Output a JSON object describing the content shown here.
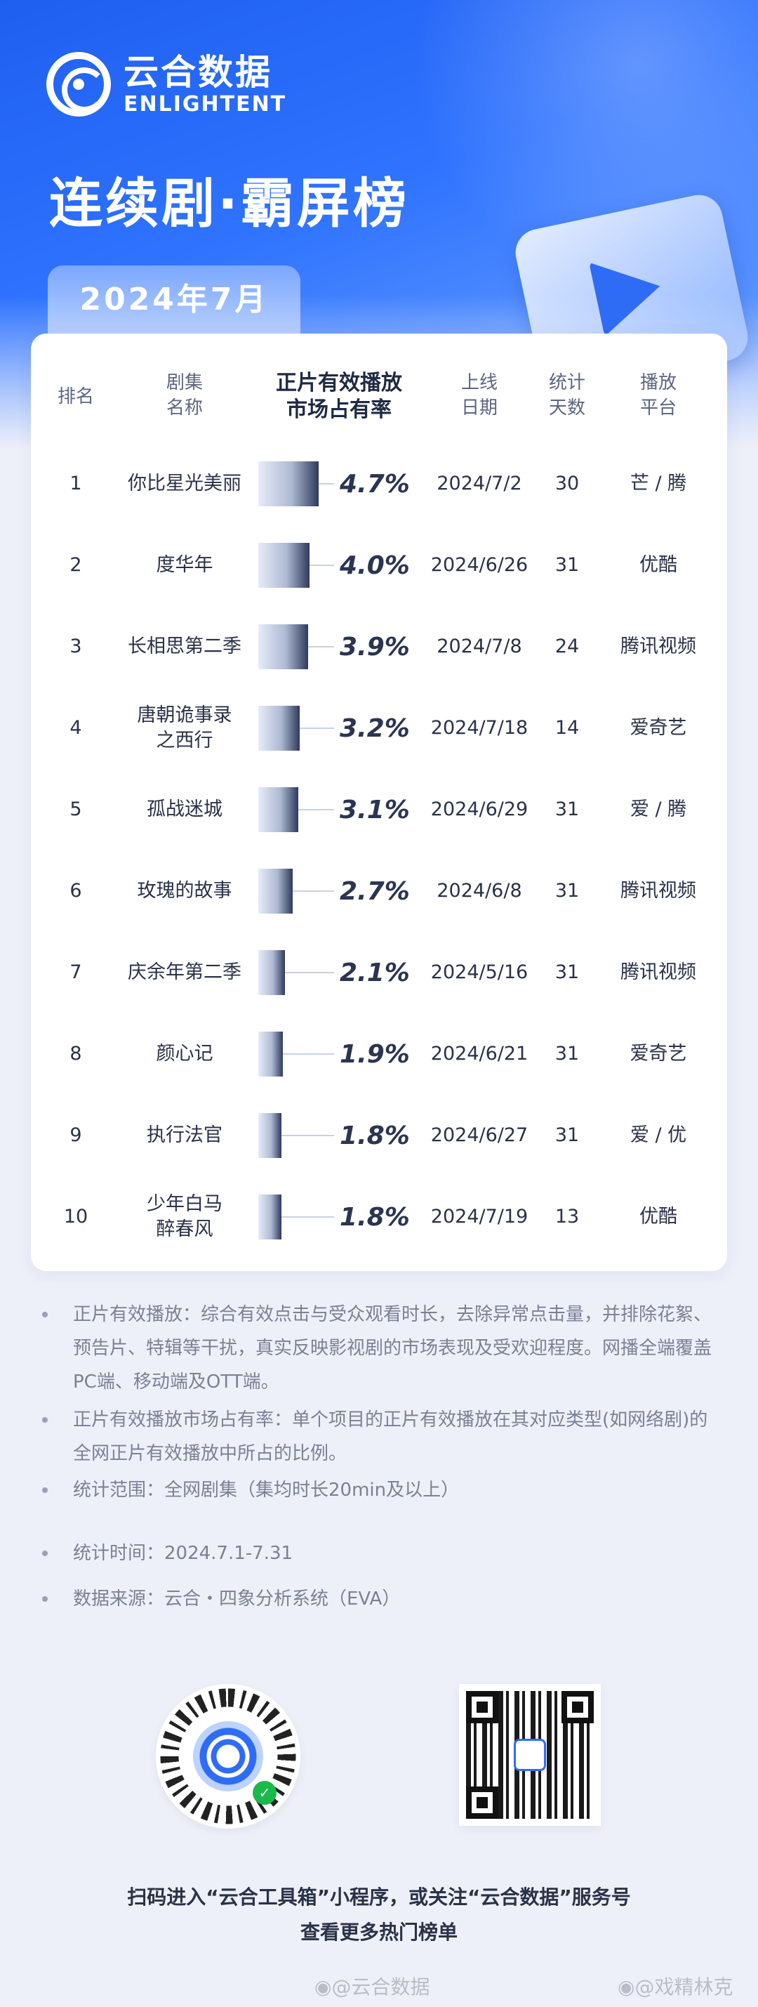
{
  "brand": {
    "name_cn": "云合数据",
    "name_en": "ENLIGHTENT"
  },
  "title": "连续剧·霸屏榜",
  "period": "2024年7月",
  "table": {
    "headers": {
      "rank": "排名",
      "name": "剧集\n名称",
      "share": "正片有效播放\n市场占有率",
      "date": "上线\n日期",
      "days": "统计\n天数",
      "platform": "播放\n平台"
    },
    "rows": [
      {
        "rank": "1",
        "name": "你比星光美丽",
        "share": "4.7%",
        "share_value": 4.7,
        "date": "2024/7/2",
        "days": "30",
        "platform": "芒 / 腾"
      },
      {
        "rank": "2",
        "name": "度华年",
        "share": "4.0%",
        "share_value": 4.0,
        "date": "2024/6/26",
        "days": "31",
        "platform": "优酷"
      },
      {
        "rank": "3",
        "name": "长相思第二季",
        "share": "3.9%",
        "share_value": 3.9,
        "date": "2024/7/8",
        "days": "24",
        "platform": "腾讯视频"
      },
      {
        "rank": "4",
        "name": "唐朝诡事录\n之西行",
        "share": "3.2%",
        "share_value": 3.2,
        "date": "2024/7/18",
        "days": "14",
        "platform": "爱奇艺"
      },
      {
        "rank": "5",
        "name": "孤战迷城",
        "share": "3.1%",
        "share_value": 3.1,
        "date": "2024/6/29",
        "days": "31",
        "platform": "爱 / 腾"
      },
      {
        "rank": "6",
        "name": "玫瑰的故事",
        "share": "2.7%",
        "share_value": 2.7,
        "date": "2024/6/8",
        "days": "31",
        "platform": "腾讯视频"
      },
      {
        "rank": "7",
        "name": "庆余年第二季",
        "share": "2.1%",
        "share_value": 2.1,
        "date": "2024/5/16",
        "days": "31",
        "platform": "腾讯视频"
      },
      {
        "rank": "8",
        "name": "颜心记",
        "share": "1.9%",
        "share_value": 1.9,
        "date": "2024/6/21",
        "days": "31",
        "platform": "爱奇艺"
      },
      {
        "rank": "9",
        "name": "执行法官",
        "share": "1.8%",
        "share_value": 1.8,
        "date": "2024/6/27",
        "days": "31",
        "platform": "爱 / 优"
      },
      {
        "rank": "10",
        "name": "少年白马\n醉春风",
        "share": "1.8%",
        "share_value": 1.8,
        "date": "2024/7/19",
        "days": "13",
        "platform": "优酷"
      }
    ]
  },
  "notes": [
    "正片有效播放：综合有效点击与受众观看时长，去除异常点击量，并排除花絮、预告片、特辑等干扰，真实反映影视剧的市场表现及受欢迎程度。网播全端覆盖PC端、移动端及OTT端。",
    "正片有效播放市场占有率：单个项目的正片有效播放在其对应类型(如网络剧)的全网正片有效播放中所占的比例。",
    "统计范围：全网剧集（集均时长20min及以上）",
    "统计时间：2024.7.1-7.31",
    "数据来源：云合・四象分析系统（EVA）"
  ],
  "footer": {
    "line1": "扫码进入“云合工具箱”小程序，或关注“云合数据”服务号",
    "line2": "查看更多热门榜单",
    "weibo_left": "@云合数据",
    "weibo_right": "@戏精林克"
  },
  "icons": {
    "logo": "enlightent-logo-icon",
    "play": "play-icon",
    "mini_program_qr": "mini-program-qr-icon",
    "service_qr": "service-account-qr-icon",
    "wechat": "wechat-icon",
    "weibo": "weibo-icon"
  },
  "colors": {
    "brand_blue": "#2f6cf5",
    "bar_dark": "#2e3a5c"
  }
}
